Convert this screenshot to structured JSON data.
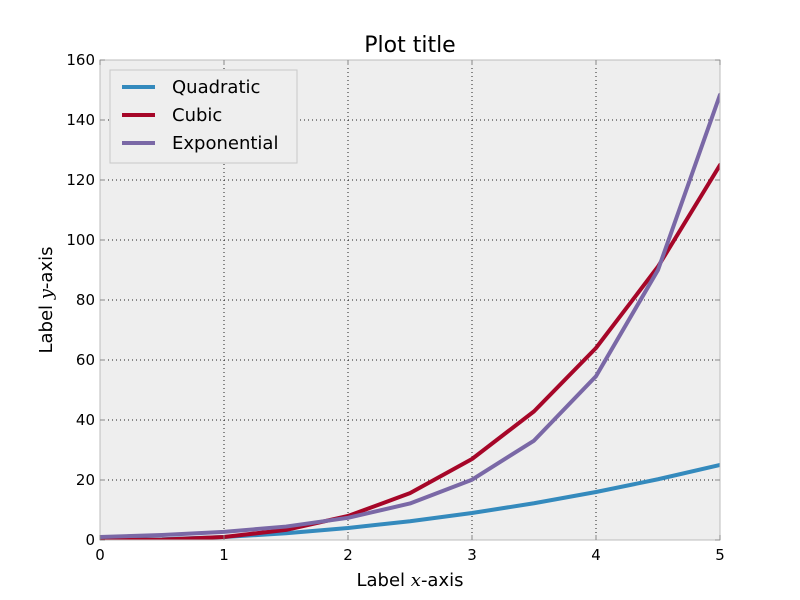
{
  "chart_data": {
    "type": "line",
    "title": "Plot title",
    "xlabel_prefix": "Label ",
    "xlabel_var": "x",
    "xlabel_suffix": "-axis",
    "ylabel_prefix": "Label ",
    "ylabel_var": "y",
    "ylabel_suffix": "-axis",
    "xlim": [
      0,
      5
    ],
    "ylim": [
      0,
      160
    ],
    "xticks": [
      "0",
      "1",
      "2",
      "3",
      "4",
      "5"
    ],
    "yticks": [
      "0",
      "20",
      "40",
      "60",
      "80",
      "100",
      "120",
      "140",
      "160"
    ],
    "grid": true,
    "legend_position": "top-left",
    "background": "#eeeeee",
    "series": [
      {
        "name": "Quadratic",
        "color": "#348abd",
        "x": [
          0,
          0.5,
          1,
          1.5,
          2,
          2.5,
          3,
          3.5,
          4,
          4.5,
          5
        ],
        "y": [
          0,
          0.25,
          1,
          2.25,
          4,
          6.25,
          9,
          12.25,
          16,
          20.25,
          25
        ]
      },
      {
        "name": "Cubic",
        "color": "#a60628",
        "x": [
          0,
          0.5,
          1,
          1.5,
          2,
          2.5,
          3,
          3.5,
          4,
          4.5,
          5
        ],
        "y": [
          0,
          0.125,
          1,
          3.375,
          8,
          15.625,
          27,
          42.875,
          64,
          91.125,
          125
        ]
      },
      {
        "name": "Exponential",
        "color": "#7a68a6",
        "x": [
          0,
          0.5,
          1,
          1.5,
          2,
          2.5,
          3,
          3.5,
          4,
          4.5,
          5
        ],
        "y": [
          1,
          1.65,
          2.72,
          4.48,
          7.39,
          12.18,
          20.09,
          33.12,
          54.6,
          90.02,
          148.41
        ]
      }
    ]
  }
}
